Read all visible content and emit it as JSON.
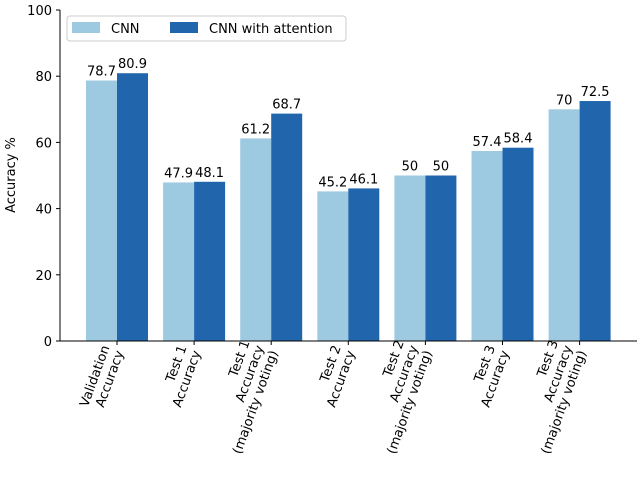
{
  "chart_data": {
    "type": "bar",
    "title": "",
    "xlabel": "",
    "ylabel": "Accuracy %",
    "ylim": [
      0,
      100
    ],
    "yticks": [
      0,
      20,
      40,
      60,
      80,
      100
    ],
    "grid": false,
    "legend_position": "top-left",
    "categories": [
      [
        "Validation",
        "Accuracy"
      ],
      [
        "Test 1",
        "Accuracy"
      ],
      [
        "Test 1",
        "Accuracy",
        "(majority voting)"
      ],
      [
        "Test 2",
        "Accuracy"
      ],
      [
        "Test 2",
        "Accuracy",
        "(majority voting)"
      ],
      [
        "Test 3",
        "Accuracy"
      ],
      [
        "Test 3",
        "Accuracy",
        "(majority voting)"
      ]
    ],
    "series": [
      {
        "name": "CNN",
        "color": "#9ecae1",
        "values": [
          78.7,
          47.9,
          61.2,
          45.2,
          50,
          57.4,
          70
        ]
      },
      {
        "name": "CNN with attention",
        "color": "#2166ac",
        "values": [
          80.9,
          48.1,
          68.7,
          46.1,
          50,
          58.4,
          72.5
        ]
      }
    ]
  }
}
